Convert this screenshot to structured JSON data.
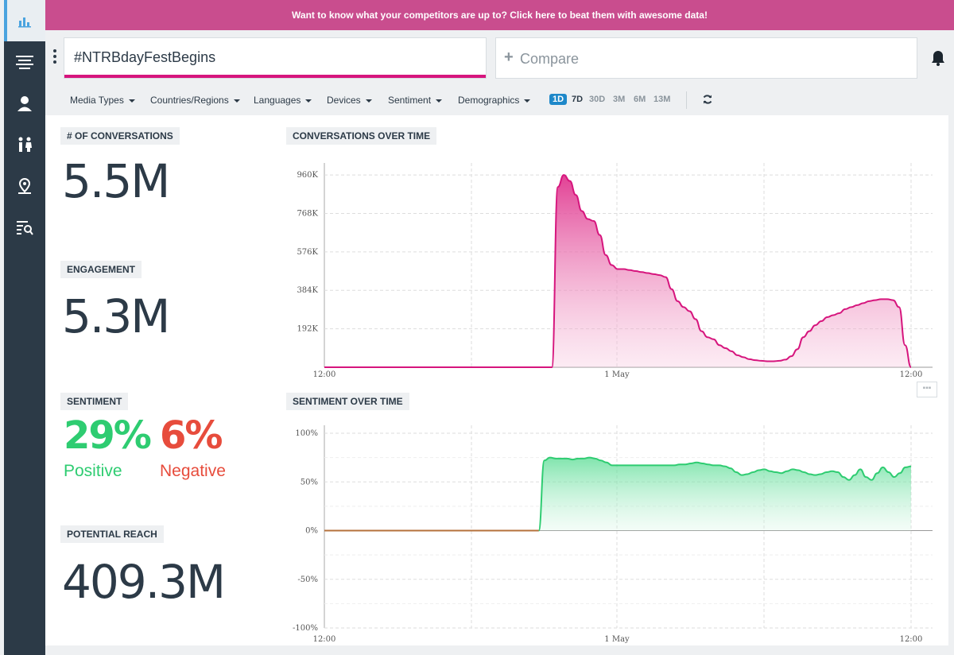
{
  "banner": {
    "text": "Want to know what your competitors are up to? Click here to beat them with awesome data!"
  },
  "sidebar": {
    "items": [
      {
        "icon": "bar-chart-icon"
      },
      {
        "icon": "stream-icon"
      },
      {
        "icon": "user-icon"
      },
      {
        "icon": "people-icon"
      },
      {
        "icon": "map-pin-icon"
      },
      {
        "icon": "list-search-icon"
      }
    ]
  },
  "search": {
    "value": "#NTRBdayFestBegins"
  },
  "compare": {
    "placeholder": "Compare"
  },
  "filters": [
    "Media Types",
    "Countries/Regions",
    "Languages",
    "Devices",
    "Sentiment",
    "Demographics"
  ],
  "ranges": [
    "1D",
    "7D",
    "30D",
    "3M",
    "6M",
    "13M"
  ],
  "active_range": "1D",
  "metrics": {
    "conversations_label": "# OF CONVERSATIONS",
    "conversations_value": "5.5M",
    "engagement_label": "ENGAGEMENT",
    "engagement_value": "5.3M",
    "sentiment_label": "SENTIMENT",
    "positive_value": "29%",
    "positive_label": "Positive",
    "negative_value": "6%",
    "negative_label": "Negative",
    "reach_label": "POTENTIAL REACH",
    "reach_value": "409.3M"
  },
  "colors": {
    "accent": "#d6157d",
    "positive": "#2ecc71",
    "negative": "#e74c3c",
    "sidebar": "#2c3a47",
    "banner": "#c94d8e"
  },
  "chart_data": [
    {
      "type": "area",
      "title": "CONVERSATIONS OVER TIME",
      "y_ticks": [
        "192K",
        "384K",
        "576K",
        "768K",
        "960K"
      ],
      "x_ticks": [
        "12:00",
        "1 May",
        "12:00"
      ],
      "ylim": [
        0,
        1000000
      ],
      "grid": true,
      "y": [
        0,
        0,
        0,
        0,
        0,
        0,
        0,
        0,
        0,
        0,
        0,
        0,
        0,
        0,
        0,
        0,
        0,
        0,
        0,
        0,
        0,
        0,
        0,
        0,
        0,
        0,
        0,
        0,
        0,
        0,
        0,
        0,
        0,
        0,
        0,
        0,
        0,
        0,
        0,
        900000,
        960000,
        930000,
        860000,
        780000,
        740000,
        730000,
        660000,
        560000,
        510000,
        490000,
        490000,
        485000,
        480000,
        475000,
        470000,
        465000,
        460000,
        450000,
        390000,
        330000,
        300000,
        280000,
        240000,
        180000,
        150000,
        140000,
        110000,
        95000,
        80000,
        60000,
        50000,
        40000,
        35000,
        32000,
        30000,
        30000,
        32000,
        38000,
        55000,
        90000,
        150000,
        180000,
        210000,
        230000,
        250000,
        260000,
        270000,
        290000,
        300000,
        310000,
        320000,
        330000,
        335000,
        340000,
        340000,
        335000,
        300000,
        110000,
        0
      ]
    },
    {
      "type": "area",
      "title": "SENTIMENT OVER TIME",
      "y_ticks": [
        "100%",
        "50%",
        "0%",
        "-50%",
        "-100%"
      ],
      "x_ticks": [
        "12:00",
        "1 May",
        "12:00"
      ],
      "ylim": [
        -100,
        100
      ],
      "grid": true,
      "y": [
        0,
        0,
        0,
        0,
        0,
        0,
        0,
        0,
        0,
        0,
        0,
        0,
        0,
        0,
        0,
        0,
        0,
        0,
        0,
        0,
        0,
        0,
        0,
        0,
        0,
        0,
        0,
        0,
        0,
        0,
        0,
        0,
        0,
        0,
        0,
        0,
        0,
        0,
        0,
        72,
        75,
        74,
        74,
        74,
        73,
        74,
        74,
        75,
        74,
        72,
        70,
        67,
        67,
        67,
        67,
        67,
        67,
        67,
        67,
        67,
        67,
        67,
        67,
        68,
        68,
        69,
        70,
        69,
        68,
        67,
        67,
        66,
        64,
        60,
        57,
        58,
        60,
        62,
        63,
        61,
        60,
        59,
        61,
        63,
        62,
        60,
        58,
        57,
        58,
        60,
        61,
        60,
        55,
        52,
        57,
        63,
        55,
        52,
        59,
        65,
        60,
        55,
        59,
        65,
        66
      ]
    }
  ]
}
